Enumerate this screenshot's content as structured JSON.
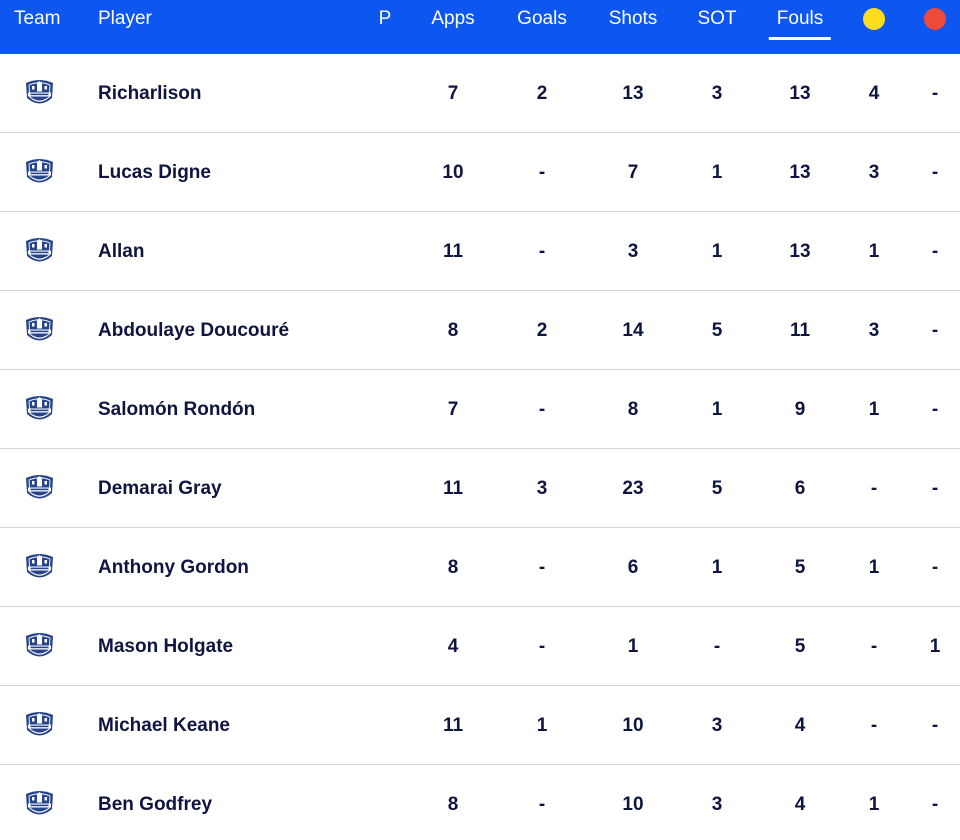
{
  "header": {
    "team": "Team",
    "player": "Player",
    "p": "P",
    "apps": "Apps",
    "goals": "Goals",
    "shots": "Shots",
    "sot": "SOT",
    "fouls": "Fouls",
    "yellow_card_color": "#ffdd1e",
    "red_card_color": "#f04a3a",
    "active_column": "fouls"
  },
  "colors": {
    "header_bg": "#0d57f0",
    "crest_blue": "#274488",
    "text": "#0e1540",
    "row_divider": "#d4d4d8"
  },
  "rows": [
    {
      "team_icon": "everton-crest-icon",
      "player": "Richarlison",
      "p": "",
      "apps": "7",
      "goals": "2",
      "shots": "13",
      "sot": "3",
      "fouls": "13",
      "yellow": "4",
      "red": "-"
    },
    {
      "team_icon": "everton-crest-icon",
      "player": "Lucas Digne",
      "p": "",
      "apps": "10",
      "goals": "-",
      "shots": "7",
      "sot": "1",
      "fouls": "13",
      "yellow": "3",
      "red": "-"
    },
    {
      "team_icon": "everton-crest-icon",
      "player": "Allan",
      "p": "",
      "apps": "11",
      "goals": "-",
      "shots": "3",
      "sot": "1",
      "fouls": "13",
      "yellow": "1",
      "red": "-"
    },
    {
      "team_icon": "everton-crest-icon",
      "player": "Abdoulaye Doucouré",
      "p": "",
      "apps": "8",
      "goals": "2",
      "shots": "14",
      "sot": "5",
      "fouls": "11",
      "yellow": "3",
      "red": "-"
    },
    {
      "team_icon": "everton-crest-icon",
      "player": "Salomón Rondón",
      "p": "",
      "apps": "7",
      "goals": "-",
      "shots": "8",
      "sot": "1",
      "fouls": "9",
      "yellow": "1",
      "red": "-"
    },
    {
      "team_icon": "everton-crest-icon",
      "player": "Demarai Gray",
      "p": "",
      "apps": "11",
      "goals": "3",
      "shots": "23",
      "sot": "5",
      "fouls": "6",
      "yellow": "-",
      "red": "-"
    },
    {
      "team_icon": "everton-crest-icon",
      "player": "Anthony Gordon",
      "p": "",
      "apps": "8",
      "goals": "-",
      "shots": "6",
      "sot": "1",
      "fouls": "5",
      "yellow": "1",
      "red": "-"
    },
    {
      "team_icon": "everton-crest-icon",
      "player": "Mason Holgate",
      "p": "",
      "apps": "4",
      "goals": "-",
      "shots": "1",
      "sot": "-",
      "fouls": "5",
      "yellow": "-",
      "red": "1"
    },
    {
      "team_icon": "everton-crest-icon",
      "player": "Michael Keane",
      "p": "",
      "apps": "11",
      "goals": "1",
      "shots": "10",
      "sot": "3",
      "fouls": "4",
      "yellow": "-",
      "red": "-"
    },
    {
      "team_icon": "everton-crest-icon",
      "player": "Ben Godfrey",
      "p": "",
      "apps": "8",
      "goals": "-",
      "shots": "10",
      "sot": "3",
      "fouls": "4",
      "yellow": "1",
      "red": "-"
    }
  ]
}
